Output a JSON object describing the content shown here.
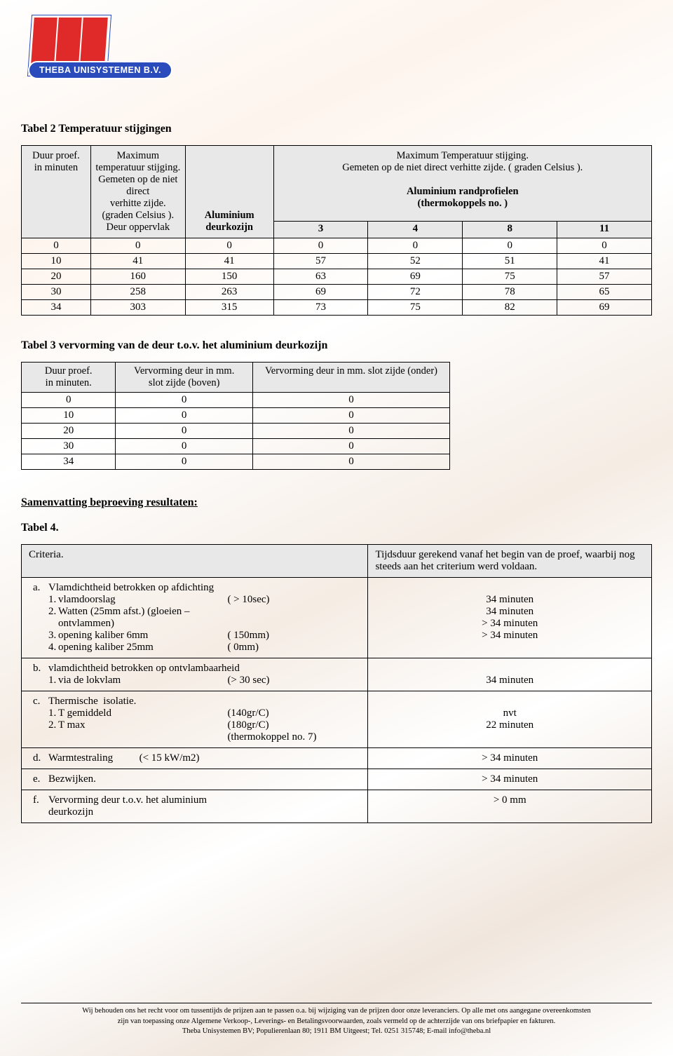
{
  "logo": {
    "brand": "THEBA UNISYSTEMEN B.V."
  },
  "table2": {
    "title": "Tabel 2  Temperatuur stijgingen",
    "hdr": {
      "c1": "Duur proef.\nin minuten",
      "c2": "Maximum\ntemperatuur stijging.\nGemeten op de niet direct\nverhitte zijde.\n(graden Celsius ).\nDeur oppervlak",
      "c3": "Aluminium\ndeurkozijn",
      "right_title": "Maximum Temperatuur stijging.\nGemeten op de niet direct verhitte zijde. ( graden Celsius ).",
      "right_sub": "Aluminium randprofielen\n(thermokoppels no. )",
      "sub_cols": [
        "3",
        "4",
        "8",
        "11"
      ]
    },
    "rows": [
      [
        "0",
        "0",
        "0",
        "0",
        "0",
        "0",
        "0"
      ],
      [
        "10",
        "41",
        "41",
        "57",
        "52",
        "51",
        "41"
      ],
      [
        "20",
        "160",
        "150",
        "63",
        "69",
        "75",
        "57"
      ],
      [
        "30",
        "258",
        "263",
        "69",
        "72",
        "78",
        "65"
      ],
      [
        "34",
        "303",
        "315",
        "73",
        "75",
        "82",
        "69"
      ]
    ]
  },
  "table3": {
    "title": "Tabel  3   vervorming van de deur t.o.v. het aluminium deurkozijn",
    "hdr": {
      "c1": "Duur proef.\nin minuten.",
      "c2": "Vervorming deur in mm.\nslot zijde (boven)",
      "c3": "Vervorming deur in mm. slot zijde   (onder)"
    },
    "rows": [
      [
        "0",
        "0",
        "0"
      ],
      [
        "10",
        "0",
        "0"
      ],
      [
        "20",
        "0",
        "0"
      ],
      [
        "30",
        "0",
        "0"
      ],
      [
        "34",
        "0",
        "0"
      ]
    ]
  },
  "summary_title": "Samenvatting beproeving resultaten:",
  "table4": {
    "title": "Tabel 4.",
    "hdr": {
      "left": "Criteria.",
      "right": "Tijdsduur gerekend vanaf het begin van de proef, waarbij nog steeds aan het criterium werd voldaan."
    },
    "rows": [
      {
        "letter": "a.",
        "head": "Vlamdichtheid betrokken op afdichting",
        "subs": [
          {
            "num": "1.",
            "text": "vlamdoorslag",
            "param": "( > 10sec)",
            "val": "34 minuten"
          },
          {
            "num": "2.",
            "text": "Watten (25mm afst.) (gloeien – ontvlammen)",
            "param": "",
            "val": "34 minuten"
          },
          {
            "num": "3.",
            "text": "opening kaliber 6mm",
            "param": "( 150mm)",
            "val": ">  34 minuten"
          },
          {
            "num": "4.",
            "text": "opening kaliber 25mm",
            "param": "(     0mm)",
            "val": ">  34 minuten"
          }
        ]
      },
      {
        "letter": "b.",
        "head": "vlamdichtheid betrokken op ontvlambaarheid",
        "subs": [
          {
            "num": "1.",
            "text": "via de lokvlam",
            "param": "(> 30 sec)",
            "val": "34 minuten"
          }
        ]
      },
      {
        "letter": "c.",
        "head": "Thermische  isolatie.",
        "subs": [
          {
            "num": "1.",
            "text": "T gemiddeld",
            "param": "(140gr/C)",
            "val": "nvt"
          },
          {
            "num": "2.",
            "text": "T max",
            "param": "(180gr/C)",
            "val": "22 minuten"
          },
          {
            "num": "",
            "text": "",
            "param": "(thermokoppel no. 7)",
            "val": ""
          }
        ]
      },
      {
        "letter": "d.",
        "head": "Warmtestraling          (< 15 kW/m2)",
        "subs": [],
        "single_val": ">  34 minuten"
      },
      {
        "letter": "e.",
        "head": "Bezwijken.",
        "subs": [],
        "single_val": ">  34 minuten"
      },
      {
        "letter": "f.",
        "head": "Vervorming deur t.o.v. het aluminium\ndeurkozijn",
        "subs": [],
        "single_val": ">    0  mm"
      }
    ]
  },
  "footer": {
    "l1": "Wij behouden ons het recht voor om tussentijds de prijzen aan te passen o.a. bij wijziging van de prijzen door onze leveranciers. Op alle met ons aangegane overeenkomsten",
    "l2": "zijn van toepassing onze Algemene Verkoop-, Leverings- en Betalingsvoorwaarden, zoals vermeld op de achterzijde van ons briefpapier en fakturen.",
    "l3": "Theba Unisystemen BV; Populierenlaan 80; 1911 BM Uitgeest; Tel. 0251 315748; E-mail info@theba.nl"
  }
}
